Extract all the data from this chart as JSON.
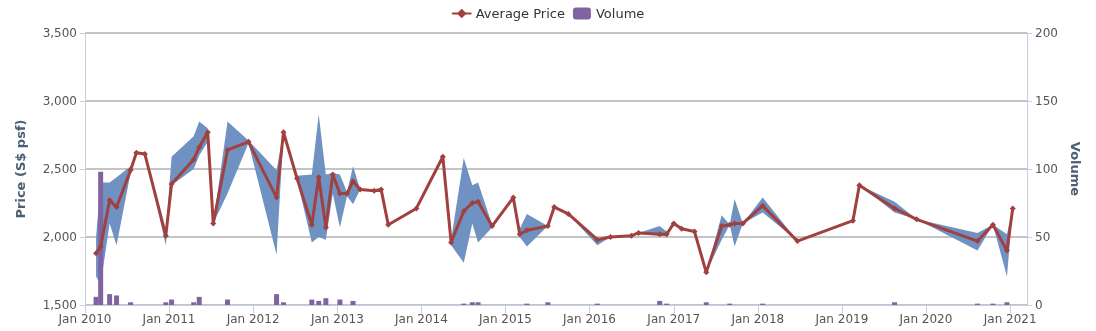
{
  "chart_data": {
    "type": "line",
    "ylabel": "Price (S$ psf)",
    "y2label": "Volume",
    "legend": "top",
    "grid": "y",
    "marker": "diamond",
    "line_style": "solid",
    "xlim": [
      "2010-01-01",
      "2021-03-15"
    ],
    "xticks": [
      {
        "value": "2010-01",
        "label": "Jan 2010"
      },
      {
        "value": "2011-01",
        "label": "Jan 2011"
      },
      {
        "value": "2012-01",
        "label": "Jan 2012"
      },
      {
        "value": "2013-01",
        "label": "Jan 2013"
      },
      {
        "value": "2014-01",
        "label": "Jan 2014"
      },
      {
        "value": "2015-01",
        "label": "Jan 2015"
      },
      {
        "value": "2016-01",
        "label": "Jan 2016"
      },
      {
        "value": "2017-01",
        "label": "Jan 2017"
      },
      {
        "value": "2018-01",
        "label": "Jan 2018"
      },
      {
        "value": "2019-01",
        "label": "Jan 2019"
      },
      {
        "value": "2020-01",
        "label": "Jan 2020"
      },
      {
        "value": "2021-01",
        "label": "Jan 2021"
      }
    ],
    "ylim": [
      1500,
      3500
    ],
    "yticks": [
      {
        "value": 1500,
        "label": "1,500"
      },
      {
        "value": 2000,
        "label": "2,000"
      },
      {
        "value": 2500,
        "label": "2,500"
      },
      {
        "value": 3000,
        "label": "3,000"
      },
      {
        "value": 3500,
        "label": "3,500"
      }
    ],
    "y2lim": [
      0,
      200
    ],
    "y2ticks": [
      0,
      50,
      100,
      150,
      200
    ],
    "series": [
      {
        "name": "Volume",
        "type": "bar",
        "axis": "y2",
        "color": "#8064a2",
        "x": [
          "2010-02-18",
          "2010-03-10",
          "2010-04-18",
          "2010-05-18",
          "2010-07-18",
          "2010-12-18",
          "2011-01-12",
          "2011-04-18",
          "2011-05-12",
          "2011-09-12",
          "2012-04-12",
          "2012-05-12",
          "2012-09-12",
          "2012-10-12",
          "2012-11-12",
          "2013-01-12",
          "2013-03-10",
          "2014-07-04",
          "2014-08-10",
          "2014-09-04",
          "2015-04-04",
          "2015-07-04",
          "2016-02-04",
          "2016-11-01",
          "2016-12-01",
          "2017-05-22",
          "2017-09-01",
          "2018-01-22",
          "2019-08-18",
          "2020-08-12",
          "2020-10-18",
          "2020-12-18"
        ],
        "values": [
          6,
          98,
          8,
          7,
          2,
          2,
          4,
          2,
          6,
          4,
          8,
          2,
          4,
          3,
          5,
          4,
          3,
          1,
          2,
          2,
          1,
          2,
          1,
          3,
          1,
          2,
          1,
          1,
          2,
          1,
          1,
          2
        ]
      },
      {
        "name": "Average Price",
        "color": "#a0403f",
        "x": [
          "2010-02-18",
          "2010-03-10",
          "2010-04-18",
          "2010-05-18",
          "2010-07-18",
          "2010-08-12",
          "2010-09-18",
          "2010-12-18",
          "2011-01-12",
          "2011-04-18",
          "2011-05-12",
          "2011-06-18",
          "2011-07-12",
          "2011-09-12",
          "2011-12-12",
          "2012-04-12",
          "2012-05-12",
          "2012-07-10",
          "2012-09-12",
          "2012-10-12",
          "2012-11-12",
          "2012-12-12",
          "2013-01-12",
          "2013-02-12",
          "2013-03-10",
          "2013-04-10",
          "2013-06-10",
          "2013-07-10",
          "2013-08-10",
          "2013-12-10",
          "2014-04-04",
          "2014-05-10",
          "2014-07-04",
          "2014-08-10",
          "2014-09-04",
          "2014-11-04",
          "2015-02-04",
          "2015-03-04",
          "2015-04-04",
          "2015-07-04",
          "2015-08-01",
          "2015-10-01",
          "2016-02-04",
          "2016-04-01",
          "2016-07-01",
          "2016-08-01",
          "2016-11-01",
          "2016-12-01",
          "2017-01-01",
          "2017-02-04",
          "2017-04-01",
          "2017-05-22",
          "2017-07-28",
          "2017-09-01",
          "2017-09-22",
          "2017-10-28",
          "2018-01-22",
          "2018-06-22",
          "2019-02-18",
          "2019-03-18",
          "2019-08-18",
          "2019-11-22",
          "2020-08-12",
          "2020-10-18",
          "2020-12-18",
          "2021-01-12"
        ],
        "values": [
          1880,
          1930,
          2270,
          2220,
          2490,
          2620,
          2610,
          2010,
          2390,
          2570,
          2660,
          2770,
          2100,
          2640,
          2700,
          2290,
          2770,
          2430,
          2090,
          2440,
          2070,
          2460,
          2320,
          2320,
          2410,
          2350,
          2340,
          2350,
          2090,
          2210,
          2590,
          1960,
          2190,
          2250,
          2260,
          2080,
          2290,
          2020,
          2050,
          2080,
          2220,
          2170,
          1980,
          2000,
          2010,
          2030,
          2020,
          2020,
          2100,
          2060,
          2040,
          1740,
          2080,
          2090,
          2100,
          2100,
          2230,
          1970,
          2120,
          2380,
          2210,
          2130,
          1970,
          2090,
          1900,
          2210
        ],
        "lower": [
          1710,
          1650,
          2100,
          1940,
          2470,
          2610,
          2610,
          1940,
          2380,
          2500,
          2600,
          2700,
          2100,
          2320,
          2690,
          1870,
          2770,
          2420,
          1960,
          2000,
          1980,
          2320,
          2070,
          2300,
          2240,
          2350,
          2340,
          2350,
          2090,
          2210,
          2590,
          1940,
          1810,
          2100,
          1960,
          2070,
          2290,
          2000,
          1930,
          2080,
          2220,
          2170,
          1940,
          2000,
          2010,
          2030,
          2010,
          2010,
          2100,
          2060,
          2040,
          1740,
          1980,
          2090,
          1930,
          2100,
          2180,
          1970,
          2120,
          2380,
          2180,
          2130,
          1900,
          2090,
          1710,
          2210
        ],
        "upper": [
          2000,
          2400,
          2400,
          2440,
          2520,
          2630,
          2610,
          2030,
          2590,
          2740,
          2850,
          2800,
          2100,
          2850,
          2710,
          2490,
          2770,
          2450,
          2460,
          2900,
          2460,
          2470,
          2460,
          2330,
          2520,
          2350,
          2340,
          2350,
          2090,
          2210,
          2590,
          1980,
          2580,
          2380,
          2400,
          2090,
          2290,
          2060,
          2170,
          2080,
          2220,
          2170,
          1990,
          2000,
          2010,
          2030,
          2080,
          2040,
          2100,
          2060,
          2040,
          1740,
          2160,
          2090,
          2280,
          2100,
          2290,
          1970,
          2120,
          2380,
          2260,
          2130,
          2030,
          2090,
          2020,
          2210
        ]
      }
    ]
  }
}
